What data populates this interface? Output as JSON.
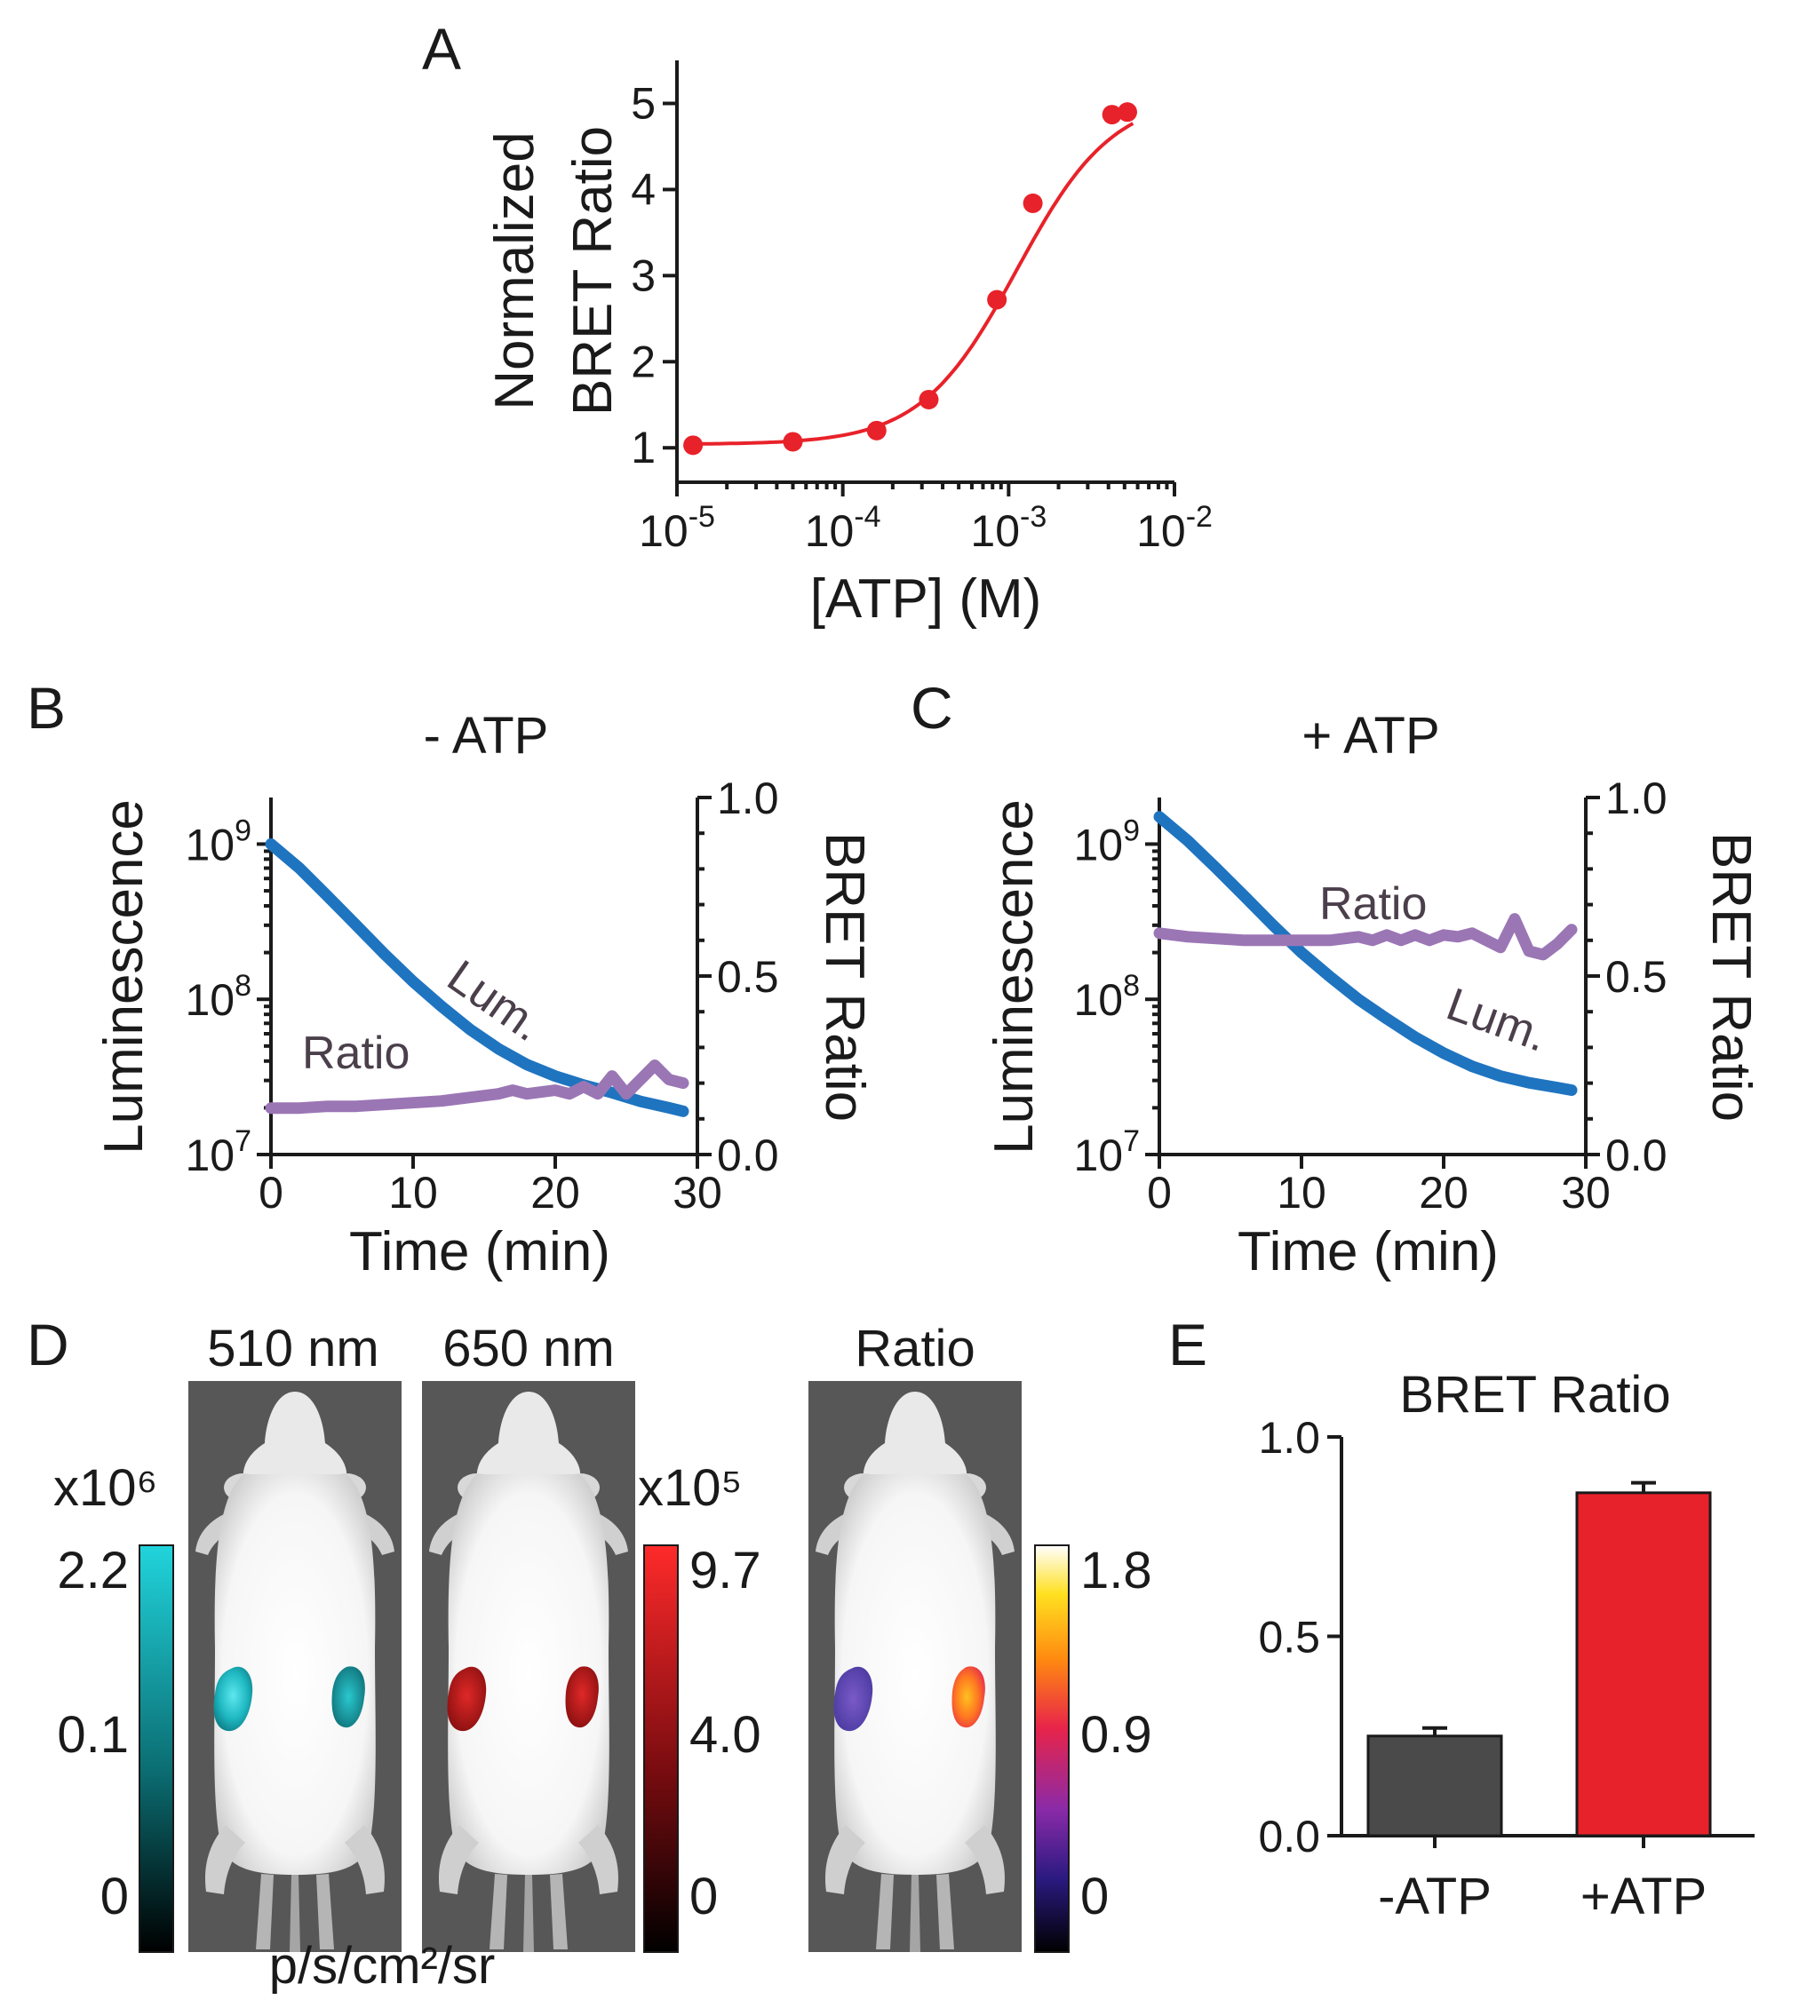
{
  "colors": {
    "red": "#e8222a",
    "blue": "#1f74c0",
    "purple": "#9b76b5",
    "dark_bar": "#4a4a4a",
    "cyan": "#1ecfd8",
    "axis": "#1a1a1a"
  },
  "chart_data": [
    {
      "panel": "A",
      "type": "scatter",
      "xscale": "log",
      "xlabel": "[ATP] (M)",
      "ylabel_lines": [
        "Normalized",
        "BRET Ratio"
      ],
      "x_ticks": [
        {
          "base": "10",
          "exp": "-5"
        },
        {
          "base": "10",
          "exp": "-4"
        },
        {
          "base": "10",
          "exp": "-3"
        },
        {
          "base": "10",
          "exp": "-2"
        }
      ],
      "xlim_log10": [
        -5,
        -2
      ],
      "ylim": [
        0.6,
        5.5
      ],
      "y_ticks": [
        "1",
        "2",
        "3",
        "4",
        "5"
      ],
      "points": [
        {
          "x": 1.25e-05,
          "y": 1.03
        },
        {
          "x": 5e-05,
          "y": 1.07
        },
        {
          "x": 0.00016,
          "y": 1.2
        },
        {
          "x": 0.00033,
          "y": 1.56
        },
        {
          "x": 0.00085,
          "y": 2.72
        },
        {
          "x": 0.0014,
          "y": 3.84
        },
        {
          "x": 0.0042,
          "y": 4.87
        },
        {
          "x": 0.0052,
          "y": 4.9
        }
      ],
      "fit": {
        "bottom": 1.04,
        "top": 5.1,
        "log_ec50": -2.95,
        "hill": 1.5
      },
      "color": "#e8222a"
    },
    {
      "panel": "B",
      "type": "line",
      "title": "- ATP",
      "xlabel": "Time (min)",
      "ylabel_left": "Luminescence",
      "ylabel_right": "BRET Ratio",
      "x_ticks": [
        "0",
        "10",
        "20",
        "30"
      ],
      "xlim": [
        0,
        30
      ],
      "ylim_left_log10": [
        7,
        9.3
      ],
      "y_left_ticks": [
        {
          "base": "10",
          "exp": "9"
        },
        {
          "base": "10",
          "exp": "8"
        },
        {
          "base": "10",
          "exp": "7"
        }
      ],
      "ylim_right": [
        0.0,
        1.0
      ],
      "y_right_ticks": [
        "1.0",
        "0.5",
        "0.0"
      ],
      "series": [
        {
          "name": "Lum.",
          "axis": "left_log",
          "color": "#1f74c0",
          "x": [
            0,
            2,
            4,
            6,
            8,
            10,
            12,
            14,
            16,
            18,
            20,
            22,
            24,
            26,
            28,
            29
          ],
          "y": [
            1000000000,
            700000000,
            460000000,
            300000000,
            195000000,
            130000000,
            90000000,
            64000000,
            48000000,
            38000000,
            32000000,
            28000000,
            25000000,
            22000000,
            20000000,
            19000000
          ]
        },
        {
          "name": "Ratio",
          "axis": "right",
          "color": "#9b76b5",
          "x": [
            0,
            2,
            4,
            6,
            8,
            10,
            12,
            14,
            16,
            17,
            18,
            20,
            21,
            22,
            23,
            24,
            25,
            26,
            27,
            28,
            29
          ],
          "y": [
            0.13,
            0.13,
            0.135,
            0.135,
            0.14,
            0.145,
            0.15,
            0.16,
            0.17,
            0.18,
            0.17,
            0.18,
            0.17,
            0.19,
            0.17,
            0.22,
            0.17,
            0.21,
            0.25,
            0.21,
            0.2
          ]
        }
      ],
      "labels": [
        "Lum.",
        "Ratio"
      ]
    },
    {
      "panel": "C",
      "type": "line",
      "title": "+ ATP",
      "xlabel": "Time (min)",
      "ylabel_left": "Luminescence",
      "ylabel_right": "BRET Ratio",
      "x_ticks": [
        "0",
        "10",
        "20",
        "30"
      ],
      "xlim": [
        0,
        30
      ],
      "ylim_left_log10": [
        7,
        9.3
      ],
      "y_left_ticks": [
        {
          "base": "10",
          "exp": "9"
        },
        {
          "base": "10",
          "exp": "8"
        },
        {
          "base": "10",
          "exp": "7"
        }
      ],
      "ylim_right": [
        0.0,
        1.0
      ],
      "y_right_ticks": [
        "1.0",
        "0.5",
        "0.0"
      ],
      "series": [
        {
          "name": "Lum.",
          "axis": "left_log",
          "color": "#1f74c0",
          "x": [
            0,
            2,
            4,
            6,
            8,
            10,
            12,
            14,
            16,
            18,
            20,
            22,
            24,
            26,
            28,
            29
          ],
          "y": [
            1500000000,
            1050000000,
            700000000,
            460000000,
            300000000,
            200000000,
            140000000,
            100000000,
            75000000,
            57000000,
            45000000,
            37000000,
            32000000,
            29000000,
            27000000,
            26000000
          ]
        },
        {
          "name": "Ratio",
          "axis": "right",
          "color": "#9b76b5",
          "x": [
            0,
            2,
            4,
            6,
            8,
            10,
            12,
            14,
            15,
            16,
            17,
            18,
            19,
            20,
            21,
            22,
            23,
            24,
            25,
            26,
            27,
            28,
            29
          ],
          "y": [
            0.62,
            0.61,
            0.605,
            0.6,
            0.6,
            0.6,
            0.6,
            0.61,
            0.6,
            0.615,
            0.6,
            0.615,
            0.6,
            0.615,
            0.61,
            0.62,
            0.6,
            0.58,
            0.66,
            0.57,
            0.56,
            0.59,
            0.63
          ]
        }
      ],
      "labels": [
        "Ratio",
        "Lum."
      ]
    },
    {
      "panel": "E",
      "type": "bar",
      "title": "BRET Ratio",
      "categories": [
        "-ATP",
        "+ATP"
      ],
      "values": [
        0.25,
        0.86
      ],
      "errors": [
        0.02,
        0.025
      ],
      "ylim": [
        0.0,
        1.0
      ],
      "y_ticks": [
        "0.0",
        "0.5",
        "1.0"
      ],
      "colors": [
        "#4a4a4a",
        "#e8222a"
      ]
    }
  ],
  "panel_d": {
    "label": "D",
    "image_titles": [
      "510 nm",
      "650 nm",
      "Ratio"
    ],
    "scale_510": {
      "exponent_label": "x10⁶",
      "ticks": [
        "2.2",
        "0.1",
        "0"
      ]
    },
    "scale_650": {
      "exponent_label": "x10⁵",
      "ticks": [
        "9.7",
        "4.0",
        "0"
      ]
    },
    "scale_ratio": {
      "ticks": [
        "1.8",
        "0.9",
        "0"
      ]
    },
    "units": "p/s/cm²/sr"
  },
  "panel_labels": {
    "a": "A",
    "b": "B",
    "c": "C",
    "d": "D",
    "e": "E"
  }
}
